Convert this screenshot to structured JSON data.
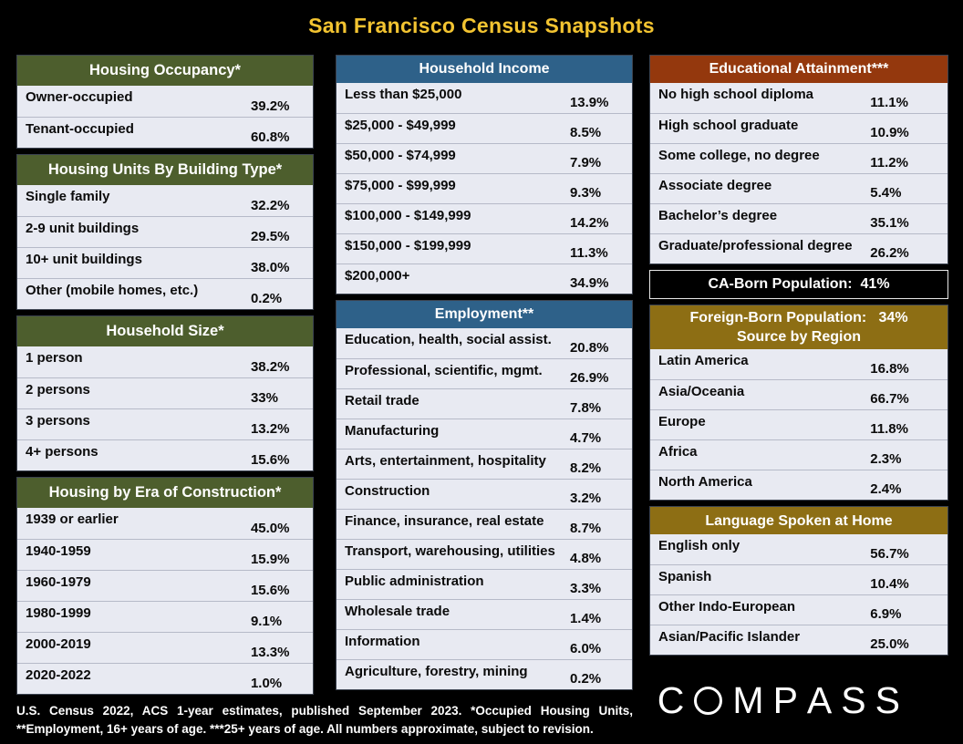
{
  "page": {
    "title": "San Francisco Census Snapshots",
    "footer": "U.S. Census 2022, ACS 1-year estimates, published September 2023.  *Occupied Housing Units, **Employment, 16+ years of age. ***25+ years of age. All numbers approximate, subject to revision.",
    "logo": "COMPASS"
  },
  "theme": {
    "title_color": "#f3c431",
    "green": "#4d5e2d",
    "blue": "#2e6189",
    "rust": "#94380d",
    "gold": "#8d6e14",
    "black": "#000000",
    "row_bg": "#e8eaf2"
  },
  "chart_data": [
    {
      "type": "table",
      "column": "left",
      "theme": "green",
      "title": "Housing Occupancy*",
      "rows": [
        [
          "Owner-occupied",
          "39.2%"
        ],
        [
          "Tenant-occupied",
          "60.8%"
        ]
      ]
    },
    {
      "type": "table",
      "column": "left",
      "theme": "green",
      "title": "Housing Units By Building Type*",
      "rows": [
        [
          "Single family",
          "32.2%"
        ],
        [
          "2-9 unit buildings",
          "29.5%"
        ],
        [
          "10+ unit buildings",
          "38.0%"
        ],
        [
          "Other (mobile homes, etc.)",
          "0.2%"
        ]
      ]
    },
    {
      "type": "table",
      "column": "left",
      "theme": "green",
      "title": "Household Size*",
      "rows": [
        [
          "1 person",
          "38.2%"
        ],
        [
          "2 persons",
          "33%"
        ],
        [
          "3 persons",
          "13.2%"
        ],
        [
          "4+ persons",
          "15.6%"
        ]
      ]
    },
    {
      "type": "table",
      "column": "left",
      "theme": "green",
      "title": "Housing by Era of Construction*",
      "rows": [
        [
          "1939 or earlier",
          "45.0%"
        ],
        [
          "1940-1959",
          "15.9%"
        ],
        [
          "1960-1979",
          "15.6%"
        ],
        [
          "1980-1999",
          "9.1%"
        ],
        [
          "2000-2019",
          "13.3%"
        ],
        [
          "2020-2022",
          "1.0%"
        ]
      ]
    },
    {
      "type": "table",
      "column": "middle",
      "theme": "blue",
      "title": "Household Income",
      "rows": [
        [
          "Less than $25,000",
          "13.9%"
        ],
        [
          "$25,000 - $49,999",
          "8.5%"
        ],
        [
          "$50,000 - $74,999",
          "7.9%"
        ],
        [
          "$75,000 - $99,999",
          "9.3%"
        ],
        [
          "$100,000 - $149,999",
          "14.2%"
        ],
        [
          "$150,000 - $199,999",
          "11.3%"
        ],
        [
          "$200,000+",
          "34.9%"
        ]
      ]
    },
    {
      "type": "table",
      "column": "middle",
      "theme": "blue",
      "title": "Employment**",
      "rows": [
        [
          "Education, health, social assist.",
          "20.8%"
        ],
        [
          "Professional, scientific, mgmt.",
          "26.9%"
        ],
        [
          "Retail trade",
          "7.8%"
        ],
        [
          "Manufacturing",
          "4.7%"
        ],
        [
          "Arts, entertainment, hospitality",
          "8.2%"
        ],
        [
          "Construction",
          "3.2%"
        ],
        [
          "Finance, insurance, real estate",
          "8.7%"
        ],
        [
          "Transport, warehousing, utilities",
          "4.8%"
        ],
        [
          "Public administration",
          "3.3%"
        ],
        [
          "Wholesale trade",
          "1.4%"
        ],
        [
          "Information",
          "6.0%"
        ],
        [
          "Agriculture, forestry, mining",
          "0.2%"
        ]
      ]
    },
    {
      "type": "table",
      "column": "right",
      "theme": "rust",
      "title": "Educational Attainment***",
      "rows": [
        [
          "No high school diploma",
          "11.1%"
        ],
        [
          "High school graduate",
          "10.9%"
        ],
        [
          "Some college, no degree",
          "11.2%"
        ],
        [
          "Associate degree",
          "5.4%"
        ],
        [
          "Bachelor’s degree",
          "35.1%"
        ],
        [
          "Graduate/professional degree",
          "26.2%"
        ]
      ]
    },
    {
      "type": "table",
      "column": "right",
      "theme": "black",
      "title": "CA-Born Population:  41%",
      "rows": []
    },
    {
      "type": "table",
      "column": "right",
      "theme": "gold",
      "title_lines": [
        "Foreign-Born Population:   34%",
        "Source by Region"
      ],
      "rows": [
        [
          "Latin America",
          "16.8%"
        ],
        [
          "Asia/Oceania",
          "66.7%"
        ],
        [
          "Europe",
          "11.8%"
        ],
        [
          "Africa",
          "2.3%"
        ],
        [
          "North America",
          "2.4%"
        ]
      ]
    },
    {
      "type": "table",
      "column": "right",
      "theme": "gold",
      "title": "Language Spoken at Home",
      "rows": [
        [
          "English only",
          "56.7%"
        ],
        [
          "Spanish",
          "10.4%"
        ],
        [
          "Other Indo-European",
          "6.9%"
        ],
        [
          "Asian/Pacific Islander",
          "25.0%"
        ]
      ]
    }
  ]
}
